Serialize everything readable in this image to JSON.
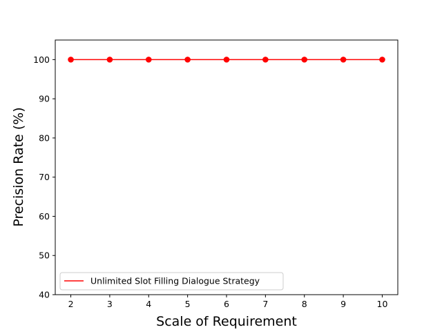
{
  "chart_data": {
    "type": "line",
    "title": "",
    "xlabel": "Scale of Requirement",
    "ylabel": "Precision Rate (%)",
    "x": [
      2,
      3,
      4,
      5,
      6,
      7,
      8,
      9,
      10
    ],
    "xlim": [
      1.6,
      10.4
    ],
    "ylim": [
      40,
      105
    ],
    "x_ticks": [
      "2",
      "3",
      "4",
      "5",
      "6",
      "7",
      "8",
      "9",
      "10"
    ],
    "y_ticks": [
      "40",
      "50",
      "60",
      "70",
      "80",
      "90",
      "100"
    ],
    "grid": false,
    "legend_position": "lower-left",
    "series": [
      {
        "name": "Unlimited Slot Filling Dialogue Strategy",
        "values": [
          100,
          100,
          100,
          100,
          100,
          100,
          100,
          100,
          100
        ],
        "color": "#ff0000",
        "marker": "circle"
      }
    ]
  }
}
